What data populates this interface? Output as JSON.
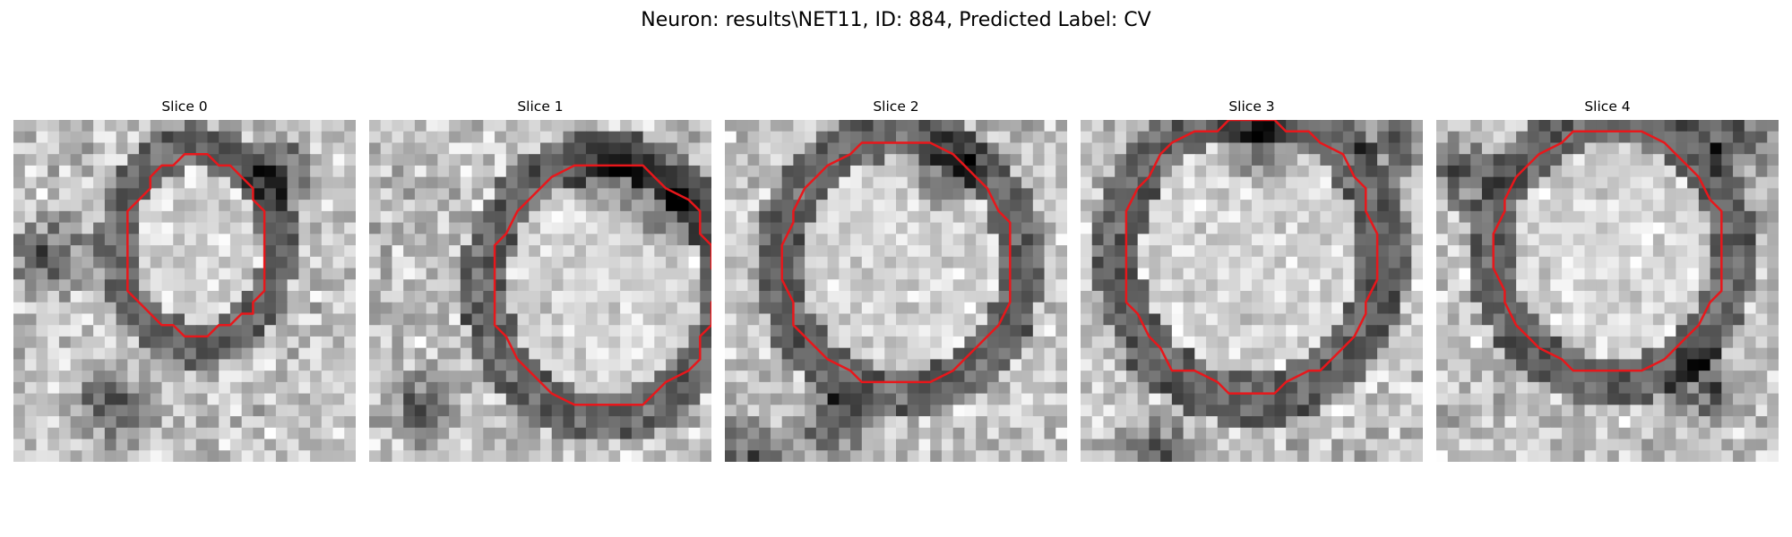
{
  "figure": {
    "title": "Neuron: results\\NET11, ID: 884, Predicted Label: CV",
    "contour_color": "#e8171b",
    "colormap": "grayscale",
    "grid_size": 30,
    "slices": [
      {
        "title": "Slice 0",
        "seed": 17
      },
      {
        "title": "Slice 1",
        "seed": 29
      },
      {
        "title": "Slice 2",
        "seed": 43
      },
      {
        "title": "Slice 3",
        "seed": 61
      },
      {
        "title": "Slice 4",
        "seed": 83
      }
    ]
  }
}
